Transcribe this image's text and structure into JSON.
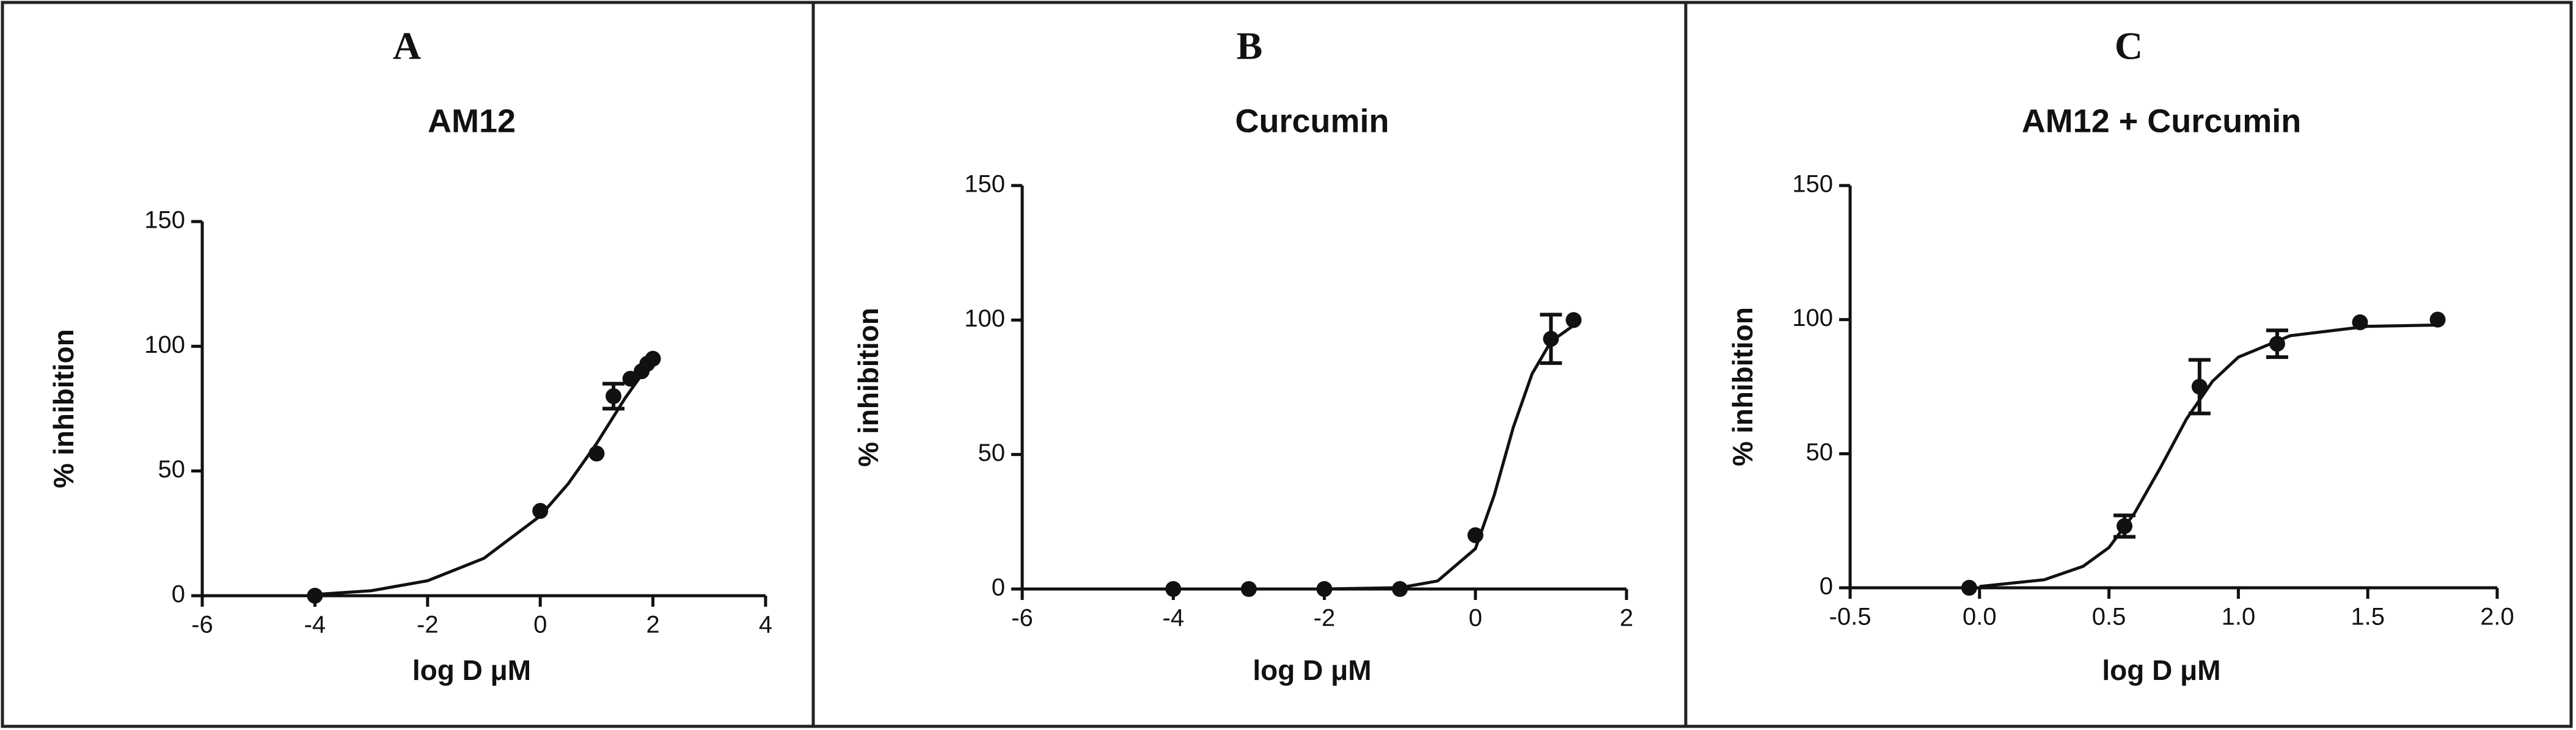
{
  "chart_data": [
    {
      "type": "scatter",
      "panel": "A",
      "title": "AM12",
      "x_label": "log D μM",
      "y_label": "% inhibition",
      "x": [
        -4,
        0,
        1,
        1.3,
        1.6,
        1.8,
        1.9,
        2
      ],
      "values": [
        0,
        34,
        57,
        80,
        87,
        90,
        93,
        95
      ],
      "errors": [
        null,
        null,
        null,
        5,
        null,
        null,
        null,
        null
      ],
      "fit": {
        "x": [
          -4,
          -3,
          -2,
          -1,
          0,
          0.5,
          1,
          1.5,
          2
        ],
        "y": [
          0.5,
          2,
          6,
          15,
          32,
          45,
          61,
          79,
          95
        ]
      },
      "color": "#111111",
      "xlim": [
        -6,
        4
      ],
      "xticks": [
        -6,
        -4,
        -2,
        0,
        2,
        4
      ],
      "ylim": [
        0,
        150
      ],
      "yticks": [
        0,
        50,
        100,
        150
      ]
    },
    {
      "type": "scatter",
      "panel": "B",
      "title": "Curcumin",
      "x_label": "log D μM",
      "y_label": "% inhibition",
      "x": [
        -4,
        -3,
        -2,
        -1,
        0,
        1,
        1.3
      ],
      "values": [
        0,
        0,
        0,
        0,
        20,
        93,
        100
      ],
      "errors": [
        null,
        null,
        null,
        null,
        null,
        9,
        null
      ],
      "fit": {
        "x": [
          -4,
          -2,
          -1,
          -0.5,
          0,
          0.25,
          0.5,
          0.75,
          1,
          1.3
        ],
        "y": [
          0,
          0,
          0.5,
          3,
          15,
          35,
          60,
          80,
          92,
          98
        ]
      },
      "color": "#111111",
      "xlim": [
        -6,
        2
      ],
      "xticks": [
        -6,
        -4,
        -2,
        0,
        2
      ],
      "ylim": [
        0,
        150
      ],
      "yticks": [
        0,
        50,
        100,
        150
      ]
    },
    {
      "type": "scatter",
      "panel": "C",
      "title": "AM12 + Curcumin",
      "x_label": "log D μM",
      "y_label": "% inhibition",
      "x": [
        -0.04,
        0.56,
        0.85,
        1.15,
        1.47,
        1.77
      ],
      "values": [
        0,
        23,
        75,
        91,
        99,
        100
      ],
      "errors": [
        null,
        4,
        10,
        5,
        null,
        null
      ],
      "fit": {
        "x": [
          0,
          0.25,
          0.4,
          0.5,
          0.6,
          0.7,
          0.8,
          0.9,
          1.0,
          1.2,
          1.5,
          1.77
        ],
        "y": [
          0.5,
          3,
          8,
          15,
          28,
          45,
          63,
          77,
          86,
          94,
          97.5,
          98
        ]
      },
      "color": "#111111",
      "xlim": [
        -0.5,
        2
      ],
      "xticks": [
        -0.5,
        {
          "value": 0,
          "label": "0.0"
        },
        0.5,
        {
          "value": 1,
          "label": "1.0"
        },
        1.5,
        {
          "value": 2,
          "label": "2.0"
        }
      ],
      "ylim": [
        0,
        150
      ],
      "yticks": [
        0,
        50,
        100,
        150
      ]
    }
  ]
}
